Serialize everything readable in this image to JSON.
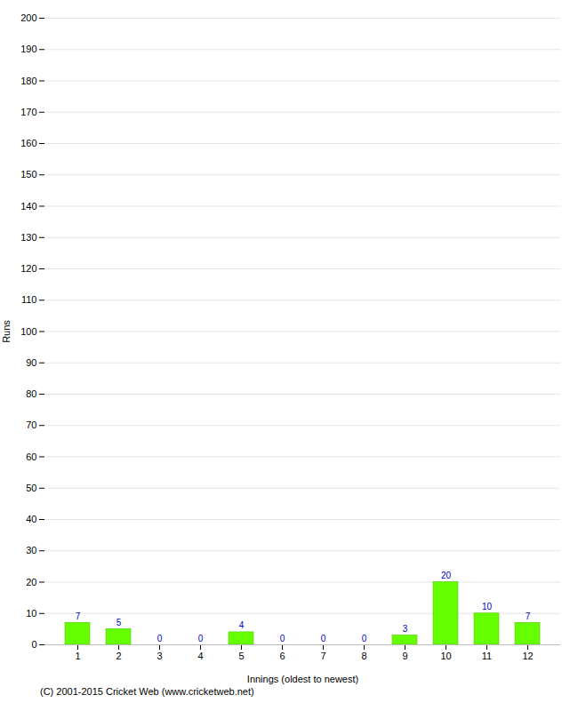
{
  "chart_data": {
    "type": "bar",
    "xlabel": "Innings (oldest to newest)",
    "ylabel": "Runs",
    "categories": [
      "1",
      "2",
      "3",
      "4",
      "5",
      "6",
      "7",
      "8",
      "9",
      "10",
      "11",
      "12"
    ],
    "values": [
      7,
      5,
      0,
      0,
      4,
      0,
      0,
      0,
      3,
      20,
      10,
      7
    ],
    "color": "#66ff00",
    "ylim": [
      0,
      200
    ],
    "yticks": [
      0,
      10,
      20,
      30,
      40,
      50,
      60,
      70,
      80,
      90,
      100,
      110,
      120,
      130,
      140,
      150,
      160,
      170,
      180,
      190,
      200
    ],
    "grid": true,
    "data_labels": true,
    "caption": "(C) 2001-2015 Cricket Web (www.cricketweb.net)"
  }
}
